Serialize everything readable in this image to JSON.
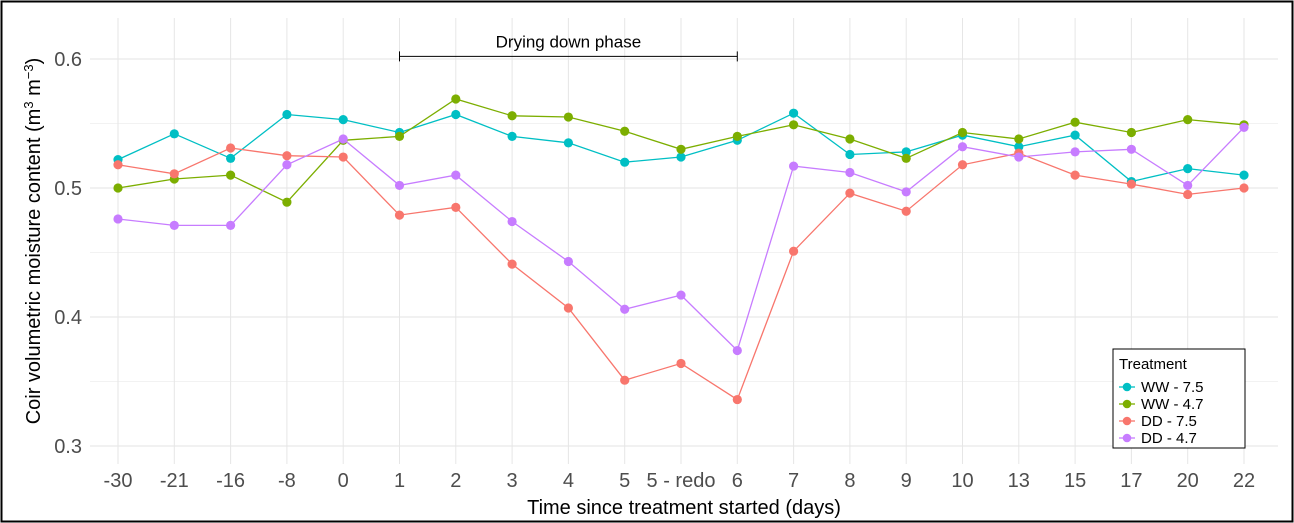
{
  "chart_data": {
    "type": "line",
    "title": "",
    "xlabel": "Time since treatment started (days)",
    "ylabel_main": "Coir volumetric moisture content (m",
    "ylabel_sup1": "3",
    "ylabel_mid": " m",
    "ylabel_sup2": "−3",
    "ylabel_end": ")",
    "categories": [
      "-30",
      "-21",
      "-16",
      "-8",
      "0",
      "1",
      "2",
      "3",
      "4",
      "5",
      "5 - redo",
      "6",
      "7",
      "8",
      "9",
      "10",
      "13",
      "15",
      "17",
      "20",
      "22"
    ],
    "ylim": [
      0.3,
      0.6
    ],
    "yticks": [
      0.3,
      0.4,
      0.5,
      0.6
    ],
    "ytick_labels": [
      "0.3",
      "0.4",
      "0.5",
      "0.6"
    ],
    "grid": true,
    "legend_position": "bottom-right",
    "legend_title": "Treatment",
    "series": [
      {
        "name": "WW - 7.5",
        "color": "#00BFC4",
        "values": [
          0.522,
          0.542,
          0.523,
          0.557,
          0.553,
          0.543,
          0.557,
          0.54,
          0.535,
          0.52,
          0.524,
          0.537,
          0.558,
          0.526,
          0.528,
          0.541,
          0.532,
          0.541,
          0.505,
          0.515,
          0.51
        ]
      },
      {
        "name": "WW - 4.7",
        "color": "#7CAE00",
        "values": [
          0.5,
          0.507,
          0.51,
          0.489,
          0.537,
          0.54,
          0.569,
          0.556,
          0.555,
          0.544,
          0.53,
          0.54,
          0.549,
          0.538,
          0.523,
          0.543,
          0.538,
          0.551,
          0.543,
          0.553,
          0.549
        ]
      },
      {
        "name": "DD - 7.5",
        "color": "#F8766D",
        "values": [
          0.518,
          0.511,
          0.531,
          0.525,
          0.524,
          0.479,
          0.485,
          0.441,
          0.407,
          0.351,
          0.364,
          0.336,
          0.451,
          0.496,
          0.482,
          0.518,
          0.527,
          0.51,
          0.503,
          0.495,
          0.5
        ]
      },
      {
        "name": "DD - 4.7",
        "color": "#C77CFF",
        "values": [
          0.476,
          0.471,
          0.471,
          0.518,
          0.538,
          0.502,
          0.51,
          0.474,
          0.443,
          0.406,
          0.417,
          0.374,
          0.517,
          0.512,
          0.497,
          0.532,
          0.524,
          0.528,
          0.53,
          0.502,
          0.547
        ]
      }
    ],
    "annotation": {
      "label": "Drying down phase",
      "from_category": "1",
      "to_category": "6",
      "y": 0.602
    }
  }
}
